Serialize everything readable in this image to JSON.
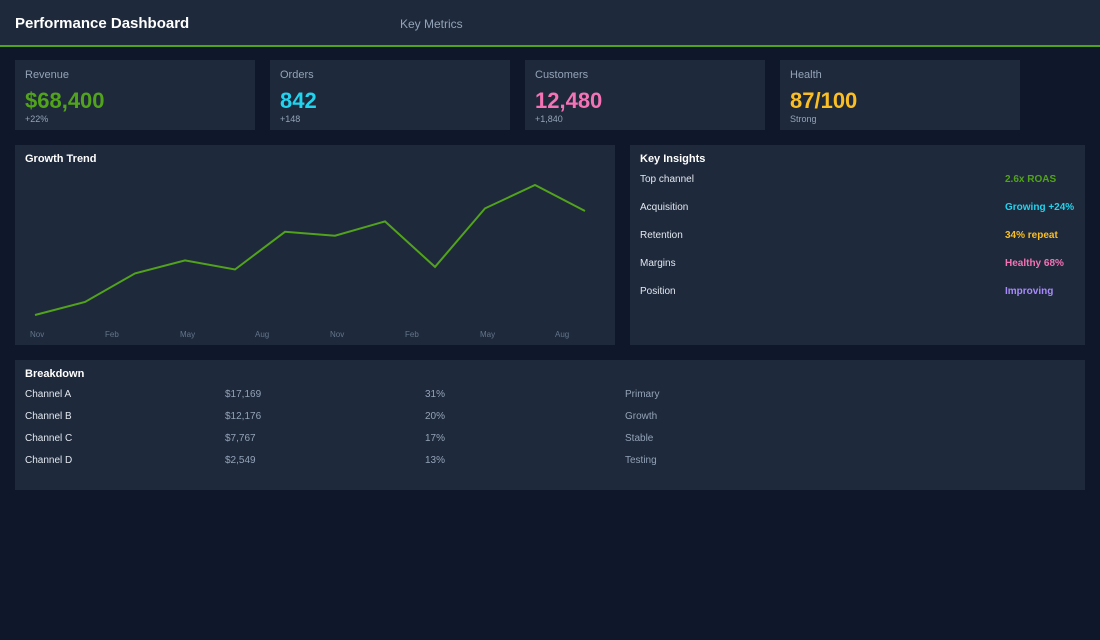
{
  "header": {
    "title": "Performance Dashboard",
    "nav": "Key Metrics"
  },
  "colors": {
    "background": "#0f172a",
    "panel": "#1e293b",
    "accent": "#52a31c",
    "cyan": "#22d3ee",
    "pink": "#f472b6",
    "amber": "#fbbf24",
    "purple": "#a78bfa"
  },
  "kpis": [
    {
      "label": "Revenue",
      "value": "$68,400",
      "sub": "+22%",
      "color": "#52a31c"
    },
    {
      "label": "Orders",
      "value": "842",
      "sub": "+148",
      "color": "#22d3ee"
    },
    {
      "label": "Customers",
      "value": "12,480",
      "sub": "+1,840",
      "color": "#f472b6"
    },
    {
      "label": "Health",
      "value": "87/100",
      "sub": "Strong",
      "color": "#fbbf24"
    }
  ],
  "trend": {
    "title": "Growth Trend"
  },
  "chart_data": {
    "type": "line",
    "title": "Growth Trend",
    "x_tick_labels": [
      "Nov",
      "Feb",
      "May",
      "Aug",
      "Nov",
      "Feb",
      "May",
      "Aug"
    ],
    "values": [
      0,
      10,
      32,
      42,
      35,
      64,
      61,
      72,
      37,
      82,
      100,
      80
    ],
    "ylim": [
      0,
      100
    ],
    "grid": false,
    "color": "#52a31c"
  },
  "insights": {
    "title": "Key Insights",
    "items": [
      {
        "label": "Top channel",
        "value": "2.6x ROAS",
        "color": "#52a31c"
      },
      {
        "label": "Acquisition",
        "value": "Growing +24%",
        "color": "#22d3ee"
      },
      {
        "label": "Retention",
        "value": "34% repeat",
        "color": "#fbbf24"
      },
      {
        "label": "Margins",
        "value": "Healthy 68%",
        "color": "#f472b6"
      },
      {
        "label": "Position",
        "value": "Improving",
        "color": "#a78bfa"
      }
    ]
  },
  "breakdown": {
    "title": "Breakdown",
    "rows": [
      {
        "channel": "Channel A",
        "revenue": "$17,169",
        "share": "31%",
        "status": "Primary"
      },
      {
        "channel": "Channel B",
        "revenue": "$12,176",
        "share": "20%",
        "status": "Growth"
      },
      {
        "channel": "Channel C",
        "revenue": "$7,767",
        "share": "17%",
        "status": "Stable"
      },
      {
        "channel": "Channel D",
        "revenue": "$2,549",
        "share": "13%",
        "status": "Testing"
      }
    ]
  }
}
